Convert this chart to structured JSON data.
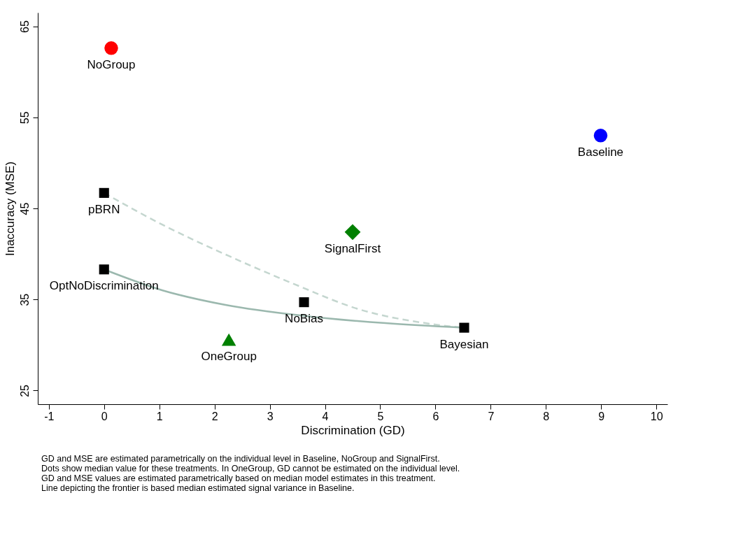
{
  "chart_data": {
    "type": "scatter",
    "xlabel": "Discrimination (GD)",
    "ylabel": "Inaccuracy (MSE)",
    "xlim": [
      -1.2,
      10.2
    ],
    "ylim": [
      23.5,
      66.5
    ],
    "xticks": [
      -1,
      0,
      1,
      2,
      3,
      4,
      5,
      6,
      7,
      8,
      9,
      10
    ],
    "yticks": [
      25,
      35,
      45,
      55,
      65
    ],
    "grid": false,
    "series": [
      {
        "type": "line",
        "line_style": "dashed",
        "color": "#c4d6cf",
        "x": [
          0,
          1.06,
          2.25,
          3.44,
          4.63,
          5.82,
          6.5
        ],
        "values": [
          46.7,
          43.2,
          39.8,
          36.7,
          33.9,
          32.4,
          31.9
        ]
      },
      {
        "type": "line",
        "line_style": "solid",
        "color": "#9bb8ae",
        "x": [
          0,
          1.06,
          2.2,
          3.62,
          5.1,
          6.5
        ],
        "values": [
          38.3,
          36.0,
          34.4,
          33.2,
          32.4,
          31.9
        ]
      },
      {
        "name": "NoGroup",
        "marker": "circle",
        "color": "#ff0000",
        "x": [
          0.13
        ],
        "values": [
          62.6
        ]
      },
      {
        "name": "Baseline",
        "marker": "circle",
        "color": "#0000ff",
        "x": [
          8.99
        ],
        "values": [
          53.0
        ]
      },
      {
        "name": "pBRN",
        "marker": "square",
        "color": "#000000",
        "x": [
          0
        ],
        "values": [
          46.7
        ]
      },
      {
        "name": "OptNoDiscrimination",
        "marker": "square",
        "color": "#000000",
        "x": [
          0
        ],
        "values": [
          38.3
        ]
      },
      {
        "name": "NoBias",
        "marker": "square",
        "color": "#000000",
        "x": [
          3.62
        ],
        "values": [
          34.7
        ]
      },
      {
        "name": "Bayesian",
        "marker": "square",
        "color": "#000000",
        "x": [
          6.52
        ],
        "values": [
          31.9
        ]
      },
      {
        "name": "SignalFirst",
        "marker": "diamond",
        "color": "#008000",
        "x": [
          4.5
        ],
        "values": [
          42.4
        ]
      },
      {
        "name": "OneGroup",
        "marker": "triangle",
        "color": "#008000",
        "x": [
          2.26
        ],
        "values": [
          30.6
        ]
      }
    ],
    "annotations": [
      "GD and MSE are estimated parametrically on the individual level in Baseline, NoGroup and SignalFirst.",
      "Dots show median value for these treatments. In OneGroup, GD cannot be estimated on the individual level.",
      "GD and MSE values are estimated parametrically based on median model estimates in this treatment.",
      "Line depicting the frontier is based median estimated signal variance in Baseline."
    ]
  }
}
